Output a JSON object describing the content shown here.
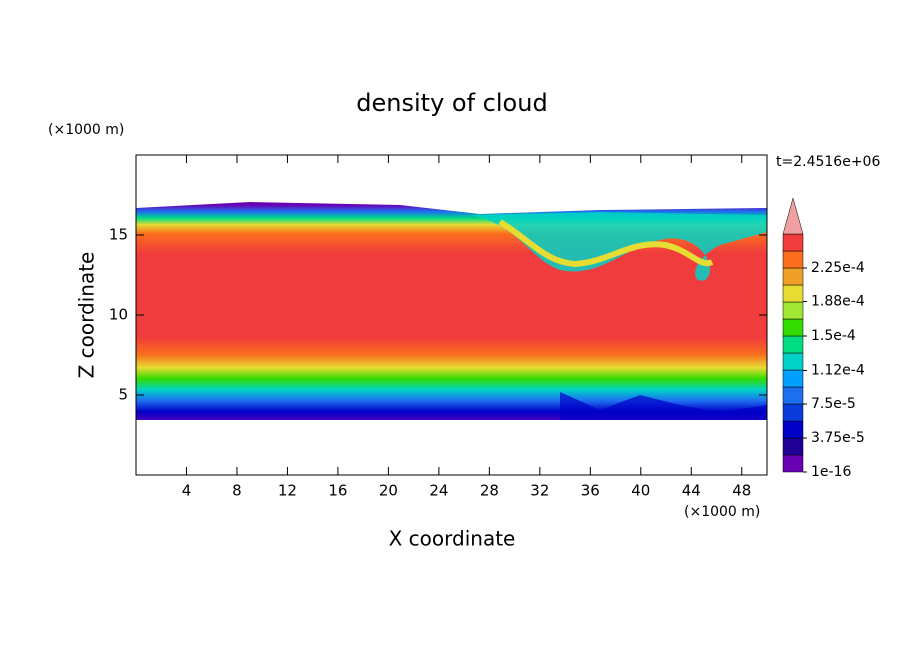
{
  "chart_data": {
    "type": "contour",
    "title": "density of cloud",
    "xlabel": "X coordinate",
    "ylabel": "Z coordinate",
    "xunit": "(×1000 m)",
    "yunit": "(×1000 m)",
    "time_label": "t=2.4516e+06",
    "xlim": [
      0,
      50
    ],
    "xticks": [
      4,
      8,
      12,
      16,
      20,
      24,
      28,
      32,
      36,
      40,
      44,
      48
    ],
    "ylim": [
      0,
      20
    ],
    "yticks": [
      5,
      10,
      15
    ],
    "colorbar": {
      "clim": [
        1e-16,
        0.00024375
      ],
      "colors": [
        "#6a00b4",
        "#1e0096",
        "#0000c8",
        "#0a3cdc",
        "#1e6ef0",
        "#00a0ff",
        "#00d2c8",
        "#00dc82",
        "#32dc00",
        "#a0e632",
        "#e6dc32",
        "#f0a028",
        "#fa6e1e",
        "#f03c3c"
      ],
      "extend_color": "#f0a0a0",
      "ticks": [
        {
          "value": 1e-16,
          "label": "1e-16"
        },
        {
          "value": 3.75e-05,
          "label": "3.75e-5"
        },
        {
          "value": 7.5e-05,
          "label": "7.5e-5"
        },
        {
          "value": 0.000112,
          "label": "1.12e-4"
        },
        {
          "value": 0.00015,
          "label": "1.5e-4"
        },
        {
          "value": 0.000188,
          "label": "1.88e-4"
        },
        {
          "value": 0.000225,
          "label": "2.25e-4"
        }
      ]
    }
  }
}
